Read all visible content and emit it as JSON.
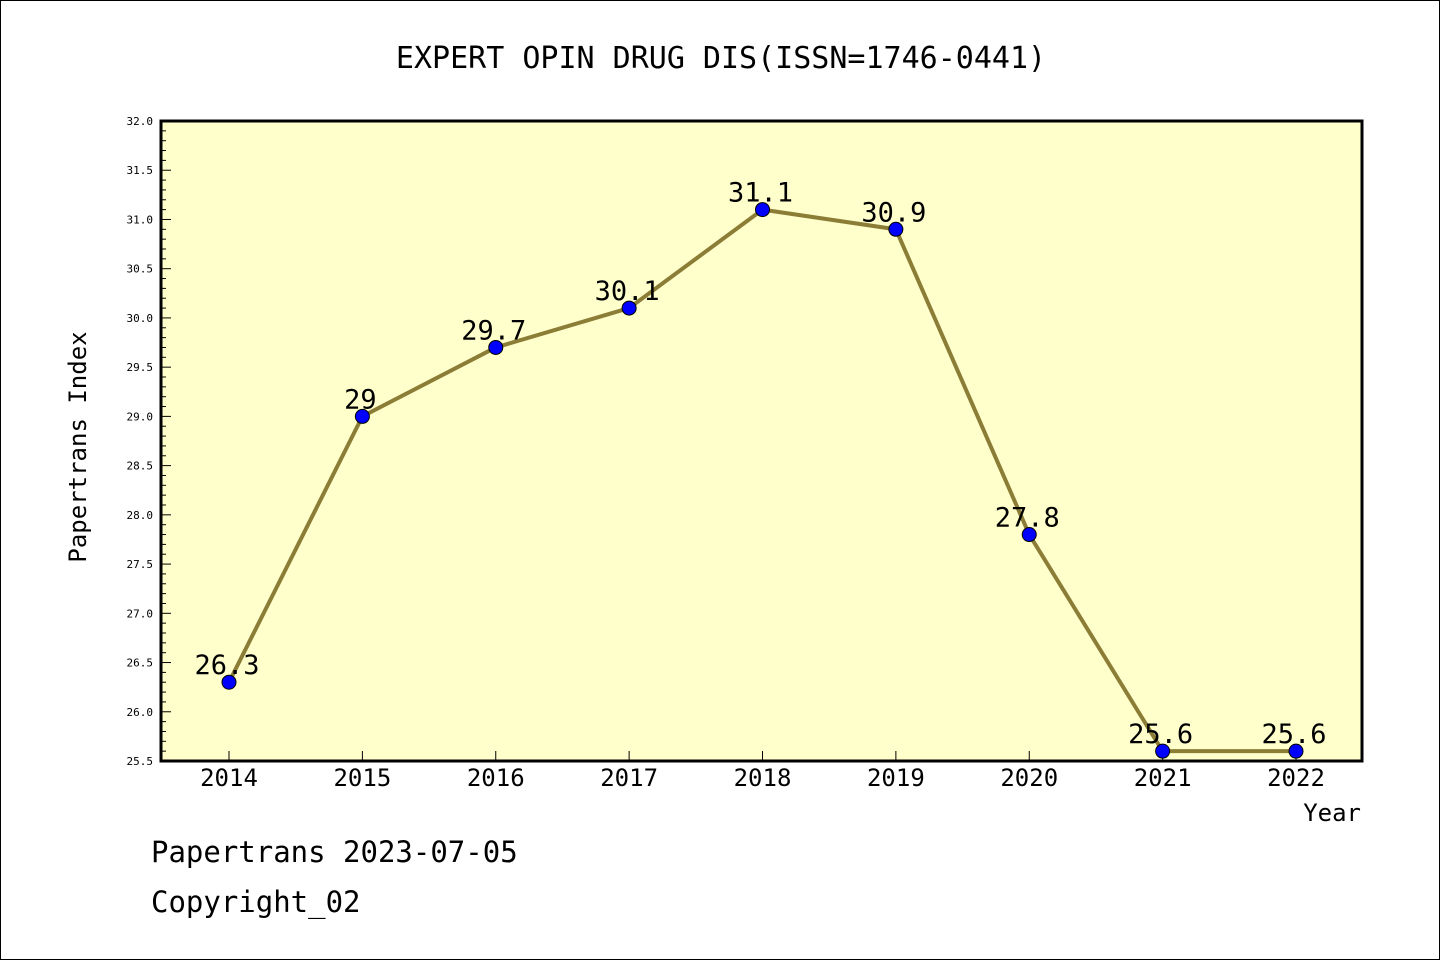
{
  "chart_data": {
    "type": "line",
    "title": "EXPERT OPIN DRUG DIS(ISSN=1746-0441)",
    "xlabel": "Year",
    "ylabel": "Papertrans Index",
    "categories": [
      "2014",
      "2015",
      "2016",
      "2017",
      "2018",
      "2019",
      "2020",
      "2021",
      "2022"
    ],
    "series": [
      {
        "values": [
          26.3,
          29,
          29.7,
          30.1,
          31.1,
          30.9,
          27.8,
          25.6,
          25.6
        ],
        "data_labels": [
          "26.3",
          "29",
          "29.7",
          "30.1",
          "31.1",
          "30.9",
          "27.8",
          "25.6",
          "25.6"
        ]
      }
    ],
    "ylim": [
      25.5,
      32.0
    ],
    "yticks": [
      "25.5",
      "26.0",
      "26.5",
      "27.0",
      "27.5",
      "28.0",
      "28.5",
      "29.0",
      "29.5",
      "30.0",
      "30.5",
      "31.0",
      "31.5",
      "32.0"
    ],
    "grid": false,
    "legend": "none",
    "colors": {
      "plot_background": "#ffffcc",
      "line": "#8b7d36",
      "marker": "#0000ff",
      "frame": "#000000"
    }
  },
  "footer": {
    "line1": "Papertrans 2023-07-05",
    "line2": "Copyright_02"
  }
}
